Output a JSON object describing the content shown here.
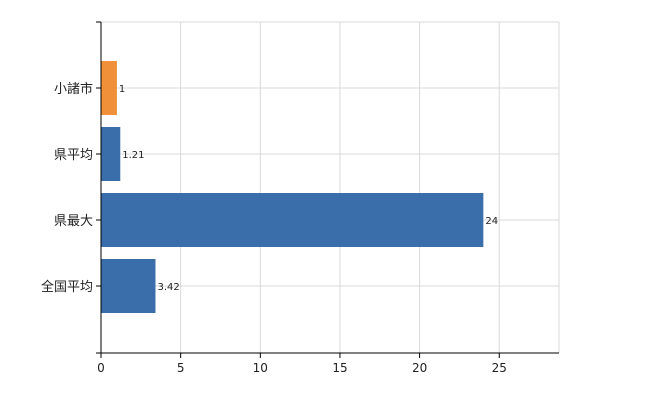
{
  "chart_data": {
    "type": "bar",
    "orientation": "horizontal",
    "categories": [
      "小諸市",
      "県平均",
      "県最大",
      "全国平均"
    ],
    "values": [
      1,
      1.21,
      24,
      3.42
    ],
    "value_labels": [
      "1",
      "1.21",
      "24",
      "3.42"
    ],
    "bar_colors": [
      "#F0913A",
      "#3A6EAA",
      "#3A6EAA",
      "#3A6EAA"
    ],
    "xlim": [
      0,
      28.75
    ],
    "x_ticks": [
      0,
      5,
      10,
      15,
      20,
      25
    ],
    "grid": true,
    "title": "",
    "xlabel": "",
    "ylabel": ""
  }
}
